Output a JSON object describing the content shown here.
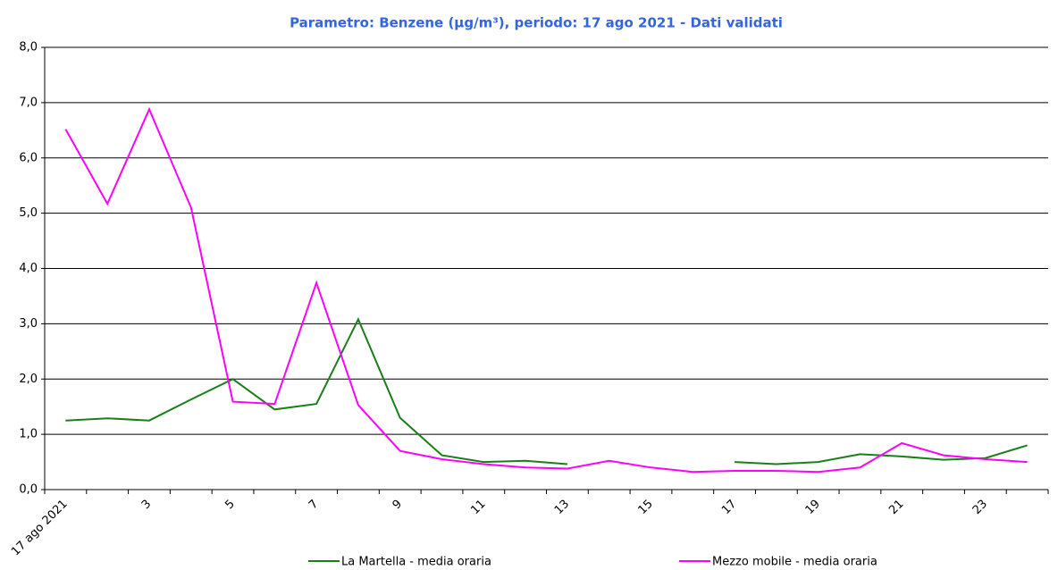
{
  "chart_data": {
    "type": "line",
    "title": "Parametro: Benzene (µg/m³), periodo: 17 ago 2021 - Dati validati",
    "categories": [
      "17 ago 2021",
      null,
      "3",
      null,
      "5",
      null,
      "7",
      null,
      "9",
      null,
      "11",
      null,
      "13",
      null,
      "15",
      null,
      "17",
      null,
      "19",
      null,
      "21",
      null,
      "23",
      null
    ],
    "series": [
      {
        "name": "La Martella - media oraria",
        "color": "#1a7f1a",
        "values": [
          1.25,
          1.29,
          1.25,
          1.63,
          2.0,
          1.45,
          1.55,
          3.08,
          1.3,
          0.62,
          0.5,
          0.52,
          0.46,
          null,
          null,
          null,
          0.5,
          0.46,
          0.5,
          0.64,
          0.6,
          0.54,
          0.57,
          0.8
        ]
      },
      {
        "name": "Mezzo mobile - media oraria",
        "color": "#ff00ff",
        "values": [
          6.52,
          5.17,
          6.88,
          5.1,
          1.59,
          1.55,
          3.74,
          1.53,
          0.7,
          0.55,
          0.46,
          0.4,
          0.38,
          0.52,
          0.4,
          0.32,
          0.34,
          0.34,
          0.32,
          0.4,
          0.84,
          0.62,
          0.55,
          0.5
        ]
      }
    ],
    "ylim": [
      0,
      8
    ],
    "yticks": [
      {
        "value": 0,
        "label": "0,0"
      },
      {
        "value": 1,
        "label": "1,0"
      },
      {
        "value": 2,
        "label": "2,0"
      },
      {
        "value": 3,
        "label": "3,0"
      },
      {
        "value": 4,
        "label": "4,0"
      },
      {
        "value": 5,
        "label": "5,0"
      },
      {
        "value": 6,
        "label": "6,0"
      },
      {
        "value": 7,
        "label": "7,0"
      },
      {
        "value": 8,
        "label": "8,0"
      }
    ],
    "grid": true
  }
}
